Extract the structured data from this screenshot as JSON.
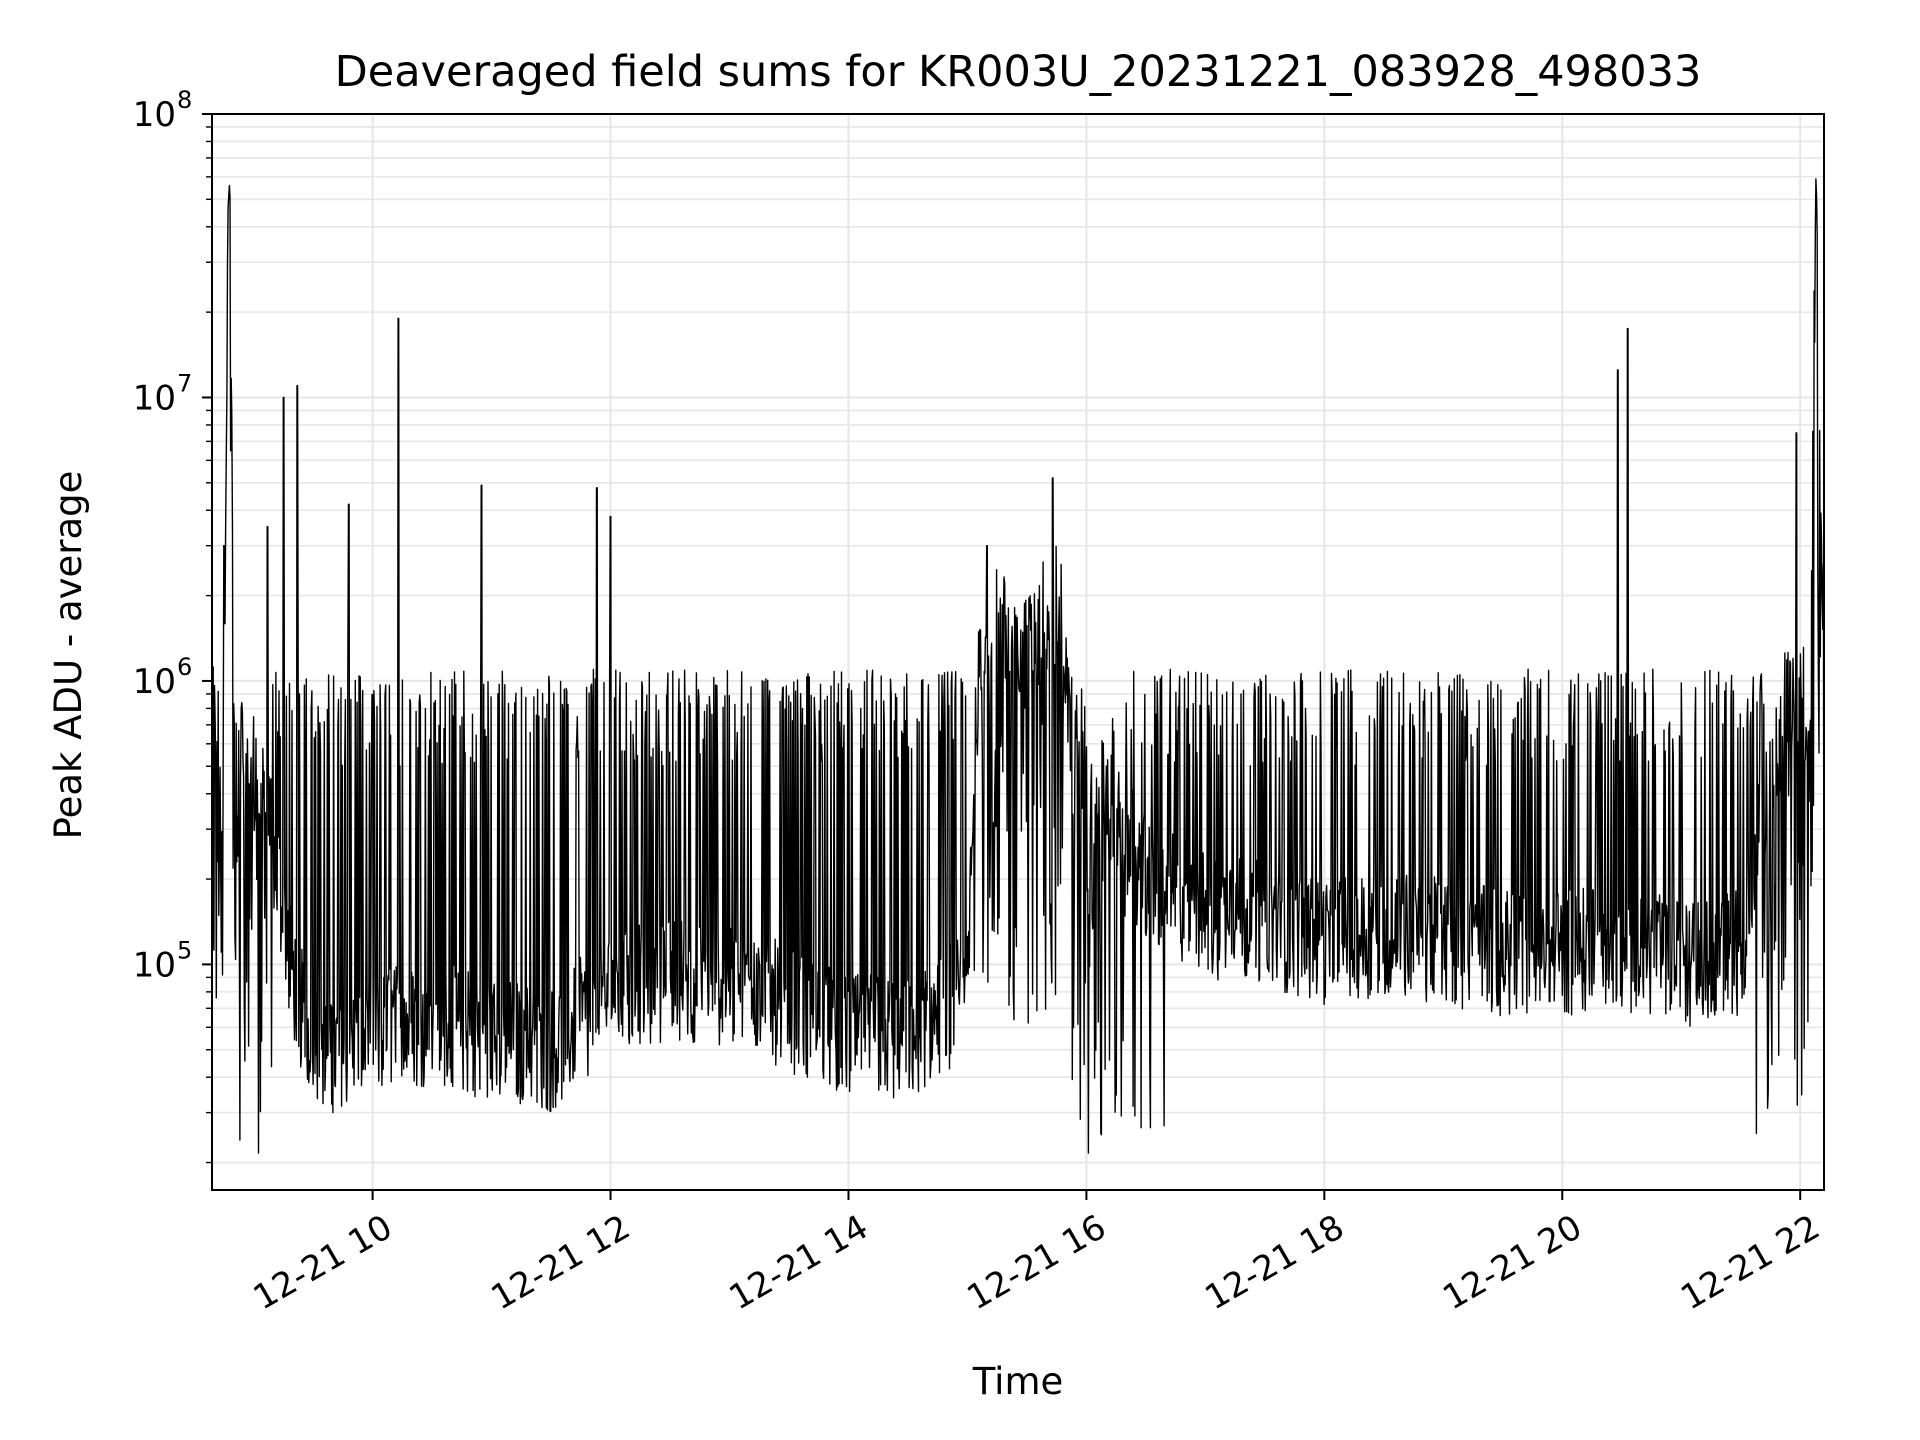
{
  "chart_data": {
    "type": "line",
    "title": "Deaveraged field sums for KR003U_20231221_083928_498033",
    "xlabel": "Time",
    "ylabel": "Peak ADU - average",
    "yscale": "log",
    "ylim": [
      16000,
      100000000
    ],
    "xlim": [
      "2023-12-21 08:39",
      "2023-12-21 22:12"
    ],
    "grid": true,
    "legend": "none",
    "line_color": "#000000",
    "grid_color": "#e6e6e6",
    "x_ticks": [
      {
        "value": "2023-12-21 10:00",
        "label": "12-21 10"
      },
      {
        "value": "2023-12-21 12:00",
        "label": "12-21 12"
      },
      {
        "value": "2023-12-21 14:00",
        "label": "12-21 14"
      },
      {
        "value": "2023-12-21 16:00",
        "label": "12-21 16"
      },
      {
        "value": "2023-12-21 18:00",
        "label": "12-21 18"
      },
      {
        "value": "2023-12-21 20:00",
        "label": "12-21 20"
      },
      {
        "value": "2023-12-21 22:00",
        "label": "12-21 22"
      }
    ],
    "y_ticks": [
      {
        "value": 100000,
        "base": "10",
        "exp": "5"
      },
      {
        "value": 1000000,
        "base": "10",
        "exp": "6"
      },
      {
        "value": 10000000,
        "base": "10",
        "exp": "7"
      },
      {
        "value": 100000000,
        "base": "10",
        "exp": "8"
      }
    ],
    "series": [
      {
        "x": [
          "2023-12-21 08:39",
          "2023-12-21 08:42",
          "2023-12-21 08:45",
          "2023-12-21 08:47",
          "2023-12-21 08:48",
          "2023-12-21 08:50",
          "2023-12-21 08:55",
          "2023-12-21 09:00",
          "2023-12-21 09:05",
          "2023-12-21 09:10",
          "2023-12-21 09:15",
          "2023-12-21 09:20",
          "2023-12-21 09:25",
          "2023-12-21 09:30",
          "2023-12-21 09:40",
          "2023-12-21 09:50",
          "2023-12-21 10:00",
          "2023-12-21 10:10",
          "2023-12-21 10:30",
          "2023-12-21 11:00",
          "2023-12-21 11:30",
          "2023-12-21 12:00",
          "2023-12-21 12:30",
          "2023-12-21 13:00",
          "2023-12-21 13:30",
          "2023-12-21 14:00",
          "2023-12-21 14:30",
          "2023-12-21 15:00",
          "2023-12-21 15:05",
          "2023-12-21 15:15",
          "2023-12-21 15:30",
          "2023-12-21 15:45",
          "2023-12-21 16:00",
          "2023-12-21 16:30",
          "2023-12-21 17:00",
          "2023-12-21 17:30",
          "2023-12-21 18:00",
          "2023-12-21 18:30",
          "2023-12-21 19:00",
          "2023-12-21 19:30",
          "2023-12-21 20:00",
          "2023-12-21 20:30",
          "2023-12-21 21:00",
          "2023-12-21 21:20",
          "2023-12-21 21:30",
          "2023-12-21 21:45",
          "2023-12-21 21:55",
          "2023-12-21 22:05",
          "2023-12-21 22:08",
          "2023-12-21 22:12"
        ],
        "y": [
          800000,
          600000,
          500000,
          45000000,
          60000000,
          700000,
          550000,
          500000,
          400000,
          250000,
          150000,
          90000,
          65000,
          55000,
          50000,
          52000,
          55000,
          60000,
          62000,
          55000,
          50000,
          80000,
          90000,
          85000,
          70000,
          55000,
          55000,
          80000,
          900000,
          1500000,
          1200000,
          2000000,
          500000,
          200000,
          150000,
          140000,
          120000,
          130000,
          120000,
          110000,
          110000,
          115000,
          100000,
          105000,
          110000,
          500000,
          900000,
          850000,
          65000000,
          1200000
        ]
      }
    ],
    "spikes": [
      {
        "x": "2023-12-21 08:45",
        "y": 3000000
      },
      {
        "x": "2023-12-21 09:07",
        "y": 3500000
      },
      {
        "x": "2023-12-21 09:15",
        "y": 10000000
      },
      {
        "x": "2023-12-21 09:22",
        "y": 11000000
      },
      {
        "x": "2023-12-21 09:48",
        "y": 4200000
      },
      {
        "x": "2023-12-21 10:13",
        "y": 19000000
      },
      {
        "x": "2023-12-21 10:55",
        "y": 4900000
      },
      {
        "x": "2023-12-21 11:53",
        "y": 4800000
      },
      {
        "x": "2023-12-21 12:00",
        "y": 3800000
      },
      {
        "x": "2023-12-21 15:10",
        "y": 3000000
      },
      {
        "x": "2023-12-21 15:43",
        "y": 5200000
      },
      {
        "x": "2023-12-21 20:28",
        "y": 12500000
      },
      {
        "x": "2023-12-21 20:33",
        "y": 17500000
      },
      {
        "x": "2023-12-21 21:58",
        "y": 7500000
      }
    ]
  }
}
